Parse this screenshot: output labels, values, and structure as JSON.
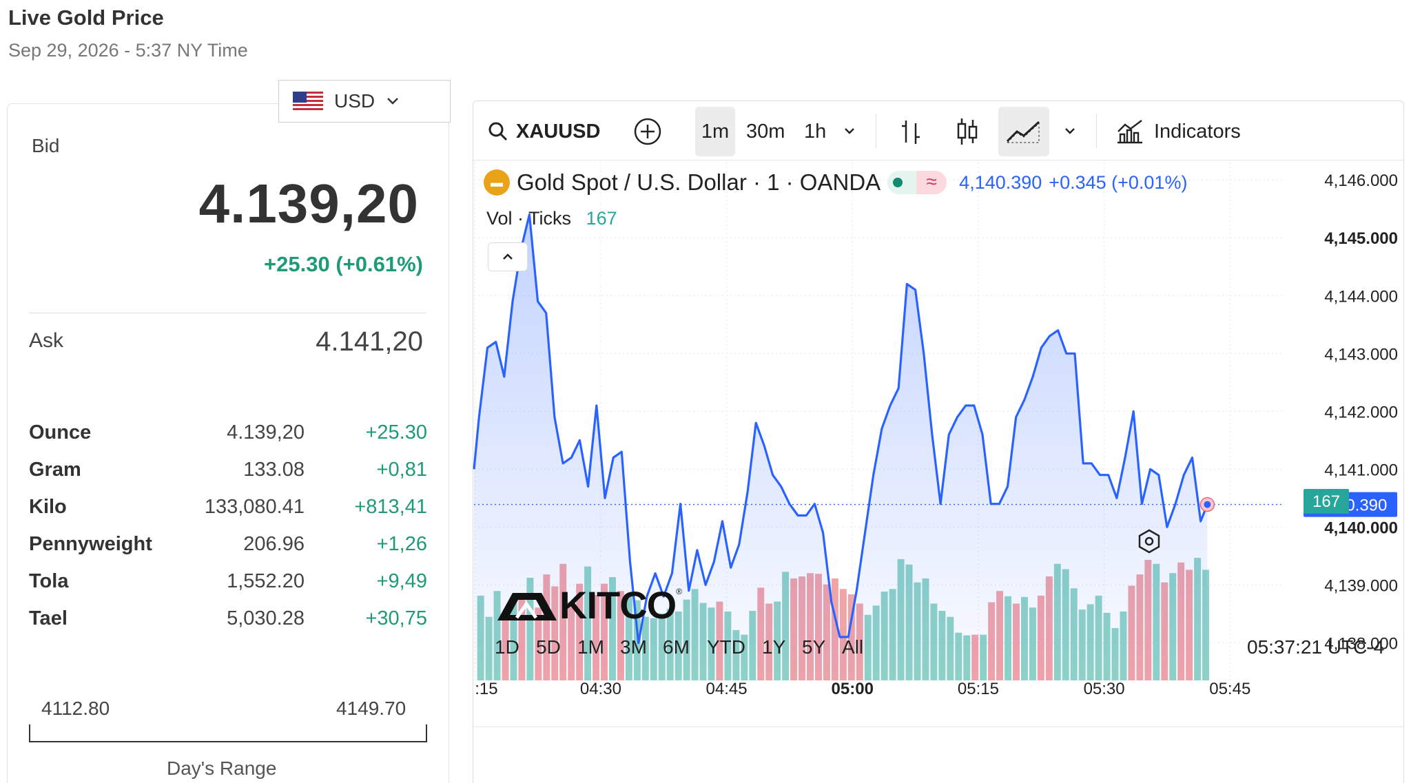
{
  "header": {
    "title": "Live Gold Price",
    "datetime": "Sep 29, 2026 - 5:37 NY Time"
  },
  "currency": {
    "selected": "USD"
  },
  "bid": {
    "label": "Bid",
    "price": "4.139,20",
    "change": "+25.30 (+0.61%)"
  },
  "ask": {
    "label": "Ask",
    "price": "4.141,20"
  },
  "units": [
    {
      "name": "Ounce",
      "price": "4.139,20",
      "change": "+25.30"
    },
    {
      "name": "Gram",
      "price": "133.08",
      "change": "+0,81"
    },
    {
      "name": "Kilo",
      "price": "133,080.41",
      "change": "+813,41"
    },
    {
      "name": "Pennyweight",
      "price": "206.96",
      "change": "+1,26"
    },
    {
      "name": "Tola",
      "price": "1,552.20",
      "change": "+9,49"
    },
    {
      "name": "Tael",
      "price": "5,030.28",
      "change": "+30,75"
    }
  ],
  "range": {
    "low": "4112.80",
    "high": "4149.70",
    "label": "Day's Range"
  },
  "toolbar": {
    "symbol": "XAUUSD",
    "intervals": [
      "1m",
      "30m",
      "1h"
    ],
    "active_interval": "1m",
    "indicators_label": "Indicators",
    "icons": [
      "search-icon",
      "add-compare-icon",
      "chevron-down-icon",
      "bar-chart-icon",
      "candle-chart-icon",
      "area-chart-icon",
      "indicators-icon"
    ]
  },
  "legend": {
    "name": "Gold Spot / U.S. Dollar · 1 · OANDA",
    "last": "4,140.390",
    "change": "+0.345 (+0.01%)",
    "vol_label": "Vol · Ticks",
    "vol_value": "167"
  },
  "footer": {
    "ranges": [
      "1D",
      "5D",
      "1M",
      "3M",
      "6M",
      "YTD",
      "1Y",
      "5Y",
      "All"
    ],
    "clock": "05:37:21 UTC-4"
  },
  "logo": {
    "text": "KITCO"
  },
  "colors": {
    "line": "#2962ff",
    "up_volume": "#8fd3c7",
    "down_volume": "#f2a3a8",
    "positive": "#1e9a77",
    "last_price_tag": "#2962ff",
    "volume_tag": "#26a69a"
  },
  "chart_data": {
    "type": "area",
    "x_ticks": [
      ":15",
      "04:30",
      "04:45",
      "05:00",
      "05:15",
      "05:30",
      "05:45"
    ],
    "x_tick_times": [
      255,
      270,
      285,
      300,
      315,
      330,
      345
    ],
    "y_ticks": [
      "4,146.000",
      "4,145.000",
      "4,144.000",
      "4,143.000",
      "4,142.000",
      "4,141.000",
      "4,140.000",
      "4,139.000",
      "4,138.000"
    ],
    "y_tick_values": [
      4146,
      4145,
      4144,
      4143,
      4142,
      4141,
      4140,
      4139,
      4138
    ],
    "ylim": [
      4137.35,
      4146.3
    ],
    "xlim": [
      254.9,
      351.3
    ],
    "last_price_label": "4,140.390",
    "last_price": 4140.39,
    "volume_label": "167",
    "price": [
      {
        "t": 254.9,
        "v": 4141.0
      },
      {
        "t": 255.5,
        "v": 4141.9
      },
      {
        "t": 256.5,
        "v": 4143.1
      },
      {
        "t": 257.5,
        "v": 4143.2
      },
      {
        "t": 258.5,
        "v": 4142.6
      },
      {
        "t": 259.5,
        "v": 4143.9
      },
      {
        "t": 260.5,
        "v": 4144.8
      },
      {
        "t": 261.5,
        "v": 4145.4
      },
      {
        "t": 262.5,
        "v": 4143.9
      },
      {
        "t": 263.5,
        "v": 4143.7
      },
      {
        "t": 264.5,
        "v": 4141.9
      },
      {
        "t": 265.5,
        "v": 4141.1
      },
      {
        "t": 266.5,
        "v": 4141.2
      },
      {
        "t": 267.5,
        "v": 4141.5
      },
      {
        "t": 268.5,
        "v": 4140.7
      },
      {
        "t": 269.5,
        "v": 4142.1
      },
      {
        "t": 270.5,
        "v": 4140.5
      },
      {
        "t": 271.5,
        "v": 4141.2
      },
      {
        "t": 272.5,
        "v": 4141.3
      },
      {
        "t": 273.5,
        "v": 4139.4
      },
      {
        "t": 274.5,
        "v": 4138.0
      },
      {
        "t": 275.5,
        "v": 4138.8
      },
      {
        "t": 276.5,
        "v": 4139.2
      },
      {
        "t": 277.5,
        "v": 4138.8
      },
      {
        "t": 278.5,
        "v": 4139.2
      },
      {
        "t": 279.5,
        "v": 4140.4
      },
      {
        "t": 280.5,
        "v": 4138.9
      },
      {
        "t": 281.5,
        "v": 4139.6
      },
      {
        "t": 282.5,
        "v": 4139.0
      },
      {
        "t": 283.5,
        "v": 4139.4
      },
      {
        "t": 284.5,
        "v": 4140.1
      },
      {
        "t": 285.5,
        "v": 4139.3
      },
      {
        "t": 286.5,
        "v": 4139.7
      },
      {
        "t": 287.5,
        "v": 4140.6
      },
      {
        "t": 288.5,
        "v": 4141.8
      },
      {
        "t": 289.5,
        "v": 4141.4
      },
      {
        "t": 290.5,
        "v": 4140.9
      },
      {
        "t": 291.5,
        "v": 4140.7
      },
      {
        "t": 292.5,
        "v": 4140.4
      },
      {
        "t": 293.5,
        "v": 4140.2
      },
      {
        "t": 294.5,
        "v": 4140.2
      },
      {
        "t": 295.5,
        "v": 4140.4
      },
      {
        "t": 296.5,
        "v": 4139.9
      },
      {
        "t": 297.5,
        "v": 4138.7
      },
      {
        "t": 298.5,
        "v": 4138.1
      },
      {
        "t": 299.5,
        "v": 4138.1
      },
      {
        "t": 300.5,
        "v": 4138.9
      },
      {
        "t": 301.5,
        "v": 4139.9
      },
      {
        "t": 302.5,
        "v": 4140.9
      },
      {
        "t": 303.5,
        "v": 4141.7
      },
      {
        "t": 304.5,
        "v": 4142.1
      },
      {
        "t": 305.5,
        "v": 4142.4
      },
      {
        "t": 306.5,
        "v": 4144.2
      },
      {
        "t": 307.5,
        "v": 4144.1
      },
      {
        "t": 308.5,
        "v": 4143.0
      },
      {
        "t": 309.5,
        "v": 4141.6
      },
      {
        "t": 310.5,
        "v": 4140.4
      },
      {
        "t": 311.5,
        "v": 4141.6
      },
      {
        "t": 312.5,
        "v": 4141.9
      },
      {
        "t": 313.5,
        "v": 4142.1
      },
      {
        "t": 314.5,
        "v": 4142.1
      },
      {
        "t": 315.5,
        "v": 4141.6
      },
      {
        "t": 316.5,
        "v": 4140.4
      },
      {
        "t": 317.5,
        "v": 4140.4
      },
      {
        "t": 318.5,
        "v": 4140.7
      },
      {
        "t": 319.5,
        "v": 4141.9
      },
      {
        "t": 320.5,
        "v": 4142.2
      },
      {
        "t": 321.5,
        "v": 4142.6
      },
      {
        "t": 322.5,
        "v": 4143.1
      },
      {
        "t": 323.5,
        "v": 4143.3
      },
      {
        "t": 324.5,
        "v": 4143.4
      },
      {
        "t": 325.5,
        "v": 4143.0
      },
      {
        "t": 326.5,
        "v": 4143.0
      },
      {
        "t": 327.5,
        "v": 4141.1
      },
      {
        "t": 328.5,
        "v": 4141.1
      },
      {
        "t": 329.5,
        "v": 4140.9
      },
      {
        "t": 330.5,
        "v": 4140.9
      },
      {
        "t": 331.5,
        "v": 4140.5
      },
      {
        "t": 332.5,
        "v": 4141.2
      },
      {
        "t": 333.5,
        "v": 4142.0
      },
      {
        "t": 334.5,
        "v": 4140.4
      },
      {
        "t": 335.5,
        "v": 4141.0
      },
      {
        "t": 336.5,
        "v": 4140.9
      },
      {
        "t": 337.5,
        "v": 4140.0
      },
      {
        "t": 338.5,
        "v": 4140.4
      },
      {
        "t": 339.5,
        "v": 4140.9
      },
      {
        "t": 340.5,
        "v": 4141.2
      },
      {
        "t": 341.5,
        "v": 4140.1
      },
      {
        "t": 342.3,
        "v": 4140.39
      }
    ],
    "volume": [
      {
        "v": 128,
        "up": true
      },
      {
        "v": 96,
        "up": true
      },
      {
        "v": 135,
        "up": true
      },
      {
        "v": 102,
        "up": false
      },
      {
        "v": 120,
        "up": true
      },
      {
        "v": 132,
        "up": false
      },
      {
        "v": 155,
        "up": true
      },
      {
        "v": 110,
        "up": false
      },
      {
        "v": 160,
        "up": false
      },
      {
        "v": 142,
        "up": false
      },
      {
        "v": 176,
        "up": false
      },
      {
        "v": 118,
        "up": false
      },
      {
        "v": 146,
        "up": false
      },
      {
        "v": 172,
        "up": true
      },
      {
        "v": 129,
        "up": false
      },
      {
        "v": 146,
        "up": false
      },
      {
        "v": 156,
        "up": true
      },
      {
        "v": 135,
        "up": false
      },
      {
        "v": 128,
        "up": true
      },
      {
        "v": 121,
        "up": true
      },
      {
        "v": 96,
        "up": true
      },
      {
        "v": 94,
        "up": true
      },
      {
        "v": 101,
        "up": true
      },
      {
        "v": 108,
        "up": true
      },
      {
        "v": 104,
        "up": true
      },
      {
        "v": 122,
        "up": true
      },
      {
        "v": 138,
        "up": true
      },
      {
        "v": 117,
        "up": true
      },
      {
        "v": 110,
        "up": true
      },
      {
        "v": 119,
        "up": false
      },
      {
        "v": 104,
        "up": true
      },
      {
        "v": 76,
        "up": true
      },
      {
        "v": 69,
        "up": true
      },
      {
        "v": 105,
        "up": true
      },
      {
        "v": 140,
        "up": false
      },
      {
        "v": 116,
        "up": false
      },
      {
        "v": 119,
        "up": true
      },
      {
        "v": 164,
        "up": true
      },
      {
        "v": 154,
        "up": false
      },
      {
        "v": 157,
        "up": false
      },
      {
        "v": 162,
        "up": false
      },
      {
        "v": 161,
        "up": false
      },
      {
        "v": 145,
        "up": false
      },
      {
        "v": 154,
        "up": false
      },
      {
        "v": 138,
        "up": false
      },
      {
        "v": 130,
        "up": false
      },
      {
        "v": 116,
        "up": false
      },
      {
        "v": 99,
        "up": true
      },
      {
        "v": 113,
        "up": true
      },
      {
        "v": 134,
        "up": true
      },
      {
        "v": 138,
        "up": true
      },
      {
        "v": 183,
        "up": true
      },
      {
        "v": 175,
        "up": true
      },
      {
        "v": 148,
        "up": true
      },
      {
        "v": 154,
        "up": true
      },
      {
        "v": 116,
        "up": true
      },
      {
        "v": 105,
        "up": true
      },
      {
        "v": 96,
        "up": true
      },
      {
        "v": 72,
        "up": true
      },
      {
        "v": 68,
        "up": true
      },
      {
        "v": 69,
        "up": false
      },
      {
        "v": 69,
        "up": true
      },
      {
        "v": 118,
        "up": false
      },
      {
        "v": 135,
        "up": false
      },
      {
        "v": 127,
        "up": true
      },
      {
        "v": 116,
        "up": false
      },
      {
        "v": 126,
        "up": true
      },
      {
        "v": 110,
        "up": true
      },
      {
        "v": 128,
        "up": false
      },
      {
        "v": 157,
        "up": false
      },
      {
        "v": 176,
        "up": true
      },
      {
        "v": 168,
        "up": true
      },
      {
        "v": 139,
        "up": true
      },
      {
        "v": 107,
        "up": true
      },
      {
        "v": 115,
        "up": true
      },
      {
        "v": 128,
        "up": true
      },
      {
        "v": 102,
        "up": true
      },
      {
        "v": 79,
        "up": true
      },
      {
        "v": 104,
        "up": true
      },
      {
        "v": 143,
        "up": false
      },
      {
        "v": 160,
        "up": false
      },
      {
        "v": 182,
        "up": false
      },
      {
        "v": 176,
        "up": true
      },
      {
        "v": 148,
        "up": false
      },
      {
        "v": 162,
        "up": true
      },
      {
        "v": 178,
        "up": false
      },
      {
        "v": 167,
        "up": false
      },
      {
        "v": 185,
        "up": true
      },
      {
        "v": 167,
        "up": true
      }
    ],
    "volume_max": 260
  }
}
